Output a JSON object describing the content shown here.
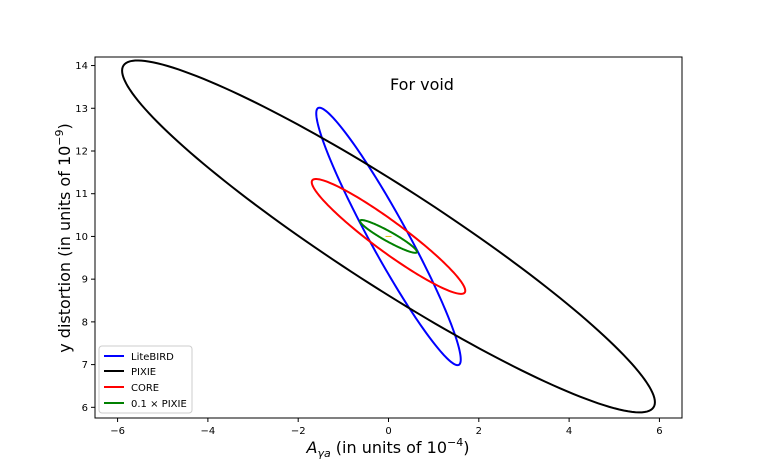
{
  "chart_data": {
    "type": "line",
    "title": "For void",
    "xlabel": {
      "prefix": "A",
      "sub": "γa",
      "rest": " (in units of 10",
      "sup": "−4",
      "close": ")"
    },
    "ylabel": {
      "rest": "y distortion (in units of 10",
      "sup": "−9",
      "close": ")"
    },
    "xlim": [
      -6.5,
      6.5
    ],
    "ylim": [
      5.75,
      14.2
    ],
    "xticks": [
      -6,
      -4,
      -2,
      0,
      2,
      4,
      6
    ],
    "xtick_labels": [
      "−6",
      "−4",
      "−2",
      "0",
      "2",
      "4",
      "6"
    ],
    "yticks": [
      6,
      7,
      8,
      9,
      10,
      11,
      12,
      13,
      14
    ],
    "ytick_labels": [
      "6",
      "7",
      "8",
      "9",
      "10",
      "11",
      "12",
      "13",
      "14"
    ],
    "grid": false,
    "legend_position": "lower-left",
    "center": [
      0,
      10
    ],
    "series": [
      {
        "name": "LiteBIRD",
        "color": "#0000ff",
        "shape": "ellipse",
        "center": [
          0,
          10
        ],
        "extreme_points": [
          [
            -1.6,
            12.88
          ],
          [
            1.6,
            7.12
          ]
        ]
      },
      {
        "name": "PIXIE",
        "color": "#000000",
        "shape": "ellipse",
        "center": [
          0,
          10
        ],
        "extreme_points": [
          [
            -5.9,
            13.88
          ],
          [
            5.9,
            6.12
          ]
        ]
      },
      {
        "name": "CORE",
        "color": "#ff0000",
        "shape": "ellipse",
        "center": [
          0,
          10
        ],
        "extreme_points": [
          [
            -1.7,
            11.27
          ],
          [
            1.7,
            8.73
          ]
        ]
      },
      {
        "name_text": "0.1 ",
        "name_symbol": "×",
        "name_rest": "  PIXIE",
        "color": "#008000",
        "shape": "ellipse",
        "center": [
          0,
          10
        ],
        "extreme_points": [
          [
            -0.63,
            10.36
          ],
          [
            0.63,
            9.64
          ]
        ]
      }
    ]
  }
}
